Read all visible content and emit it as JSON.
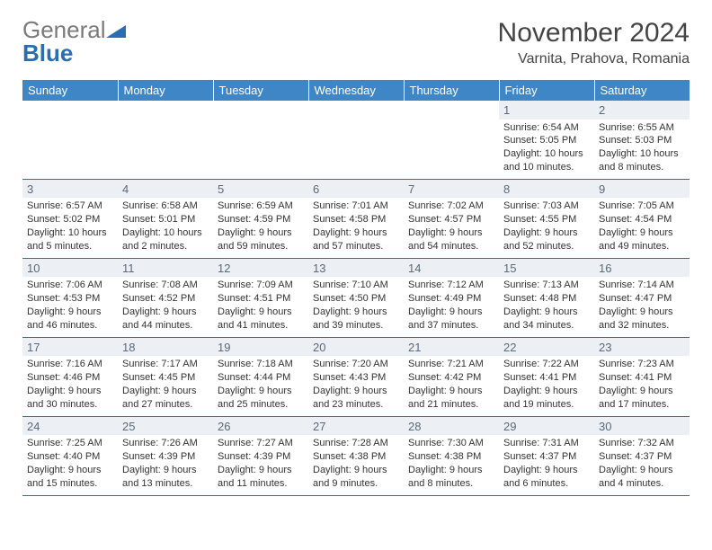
{
  "logo": {
    "gray": "General",
    "blue": "Blue"
  },
  "title": "November 2024",
  "location": "Varnita, Prahova, Romania",
  "colors": {
    "header_bg": "#3f86c7",
    "header_fg": "#ffffff",
    "row_divider": "#3a6da3",
    "daynum_bg": "#eceff3",
    "daynum_fg": "#5a6a78",
    "page_bg": "#ffffff"
  },
  "day_headers": [
    "Sunday",
    "Monday",
    "Tuesday",
    "Wednesday",
    "Thursday",
    "Friday",
    "Saturday"
  ],
  "weeks": [
    [
      {
        "n": "",
        "sunrise": "",
        "sunset": "",
        "daylight": ""
      },
      {
        "n": "",
        "sunrise": "",
        "sunset": "",
        "daylight": ""
      },
      {
        "n": "",
        "sunrise": "",
        "sunset": "",
        "daylight": ""
      },
      {
        "n": "",
        "sunrise": "",
        "sunset": "",
        "daylight": ""
      },
      {
        "n": "",
        "sunrise": "",
        "sunset": "",
        "daylight": ""
      },
      {
        "n": "1",
        "sunrise": "Sunrise: 6:54 AM",
        "sunset": "Sunset: 5:05 PM",
        "daylight": "Daylight: 10 hours and 10 minutes."
      },
      {
        "n": "2",
        "sunrise": "Sunrise: 6:55 AM",
        "sunset": "Sunset: 5:03 PM",
        "daylight": "Daylight: 10 hours and 8 minutes."
      }
    ],
    [
      {
        "n": "3",
        "sunrise": "Sunrise: 6:57 AM",
        "sunset": "Sunset: 5:02 PM",
        "daylight": "Daylight: 10 hours and 5 minutes."
      },
      {
        "n": "4",
        "sunrise": "Sunrise: 6:58 AM",
        "sunset": "Sunset: 5:01 PM",
        "daylight": "Daylight: 10 hours and 2 minutes."
      },
      {
        "n": "5",
        "sunrise": "Sunrise: 6:59 AM",
        "sunset": "Sunset: 4:59 PM",
        "daylight": "Daylight: 9 hours and 59 minutes."
      },
      {
        "n": "6",
        "sunrise": "Sunrise: 7:01 AM",
        "sunset": "Sunset: 4:58 PM",
        "daylight": "Daylight: 9 hours and 57 minutes."
      },
      {
        "n": "7",
        "sunrise": "Sunrise: 7:02 AM",
        "sunset": "Sunset: 4:57 PM",
        "daylight": "Daylight: 9 hours and 54 minutes."
      },
      {
        "n": "8",
        "sunrise": "Sunrise: 7:03 AM",
        "sunset": "Sunset: 4:55 PM",
        "daylight": "Daylight: 9 hours and 52 minutes."
      },
      {
        "n": "9",
        "sunrise": "Sunrise: 7:05 AM",
        "sunset": "Sunset: 4:54 PM",
        "daylight": "Daylight: 9 hours and 49 minutes."
      }
    ],
    [
      {
        "n": "10",
        "sunrise": "Sunrise: 7:06 AM",
        "sunset": "Sunset: 4:53 PM",
        "daylight": "Daylight: 9 hours and 46 minutes."
      },
      {
        "n": "11",
        "sunrise": "Sunrise: 7:08 AM",
        "sunset": "Sunset: 4:52 PM",
        "daylight": "Daylight: 9 hours and 44 minutes."
      },
      {
        "n": "12",
        "sunrise": "Sunrise: 7:09 AM",
        "sunset": "Sunset: 4:51 PM",
        "daylight": "Daylight: 9 hours and 41 minutes."
      },
      {
        "n": "13",
        "sunrise": "Sunrise: 7:10 AM",
        "sunset": "Sunset: 4:50 PM",
        "daylight": "Daylight: 9 hours and 39 minutes."
      },
      {
        "n": "14",
        "sunrise": "Sunrise: 7:12 AM",
        "sunset": "Sunset: 4:49 PM",
        "daylight": "Daylight: 9 hours and 37 minutes."
      },
      {
        "n": "15",
        "sunrise": "Sunrise: 7:13 AM",
        "sunset": "Sunset: 4:48 PM",
        "daylight": "Daylight: 9 hours and 34 minutes."
      },
      {
        "n": "16",
        "sunrise": "Sunrise: 7:14 AM",
        "sunset": "Sunset: 4:47 PM",
        "daylight": "Daylight: 9 hours and 32 minutes."
      }
    ],
    [
      {
        "n": "17",
        "sunrise": "Sunrise: 7:16 AM",
        "sunset": "Sunset: 4:46 PM",
        "daylight": "Daylight: 9 hours and 30 minutes."
      },
      {
        "n": "18",
        "sunrise": "Sunrise: 7:17 AM",
        "sunset": "Sunset: 4:45 PM",
        "daylight": "Daylight: 9 hours and 27 minutes."
      },
      {
        "n": "19",
        "sunrise": "Sunrise: 7:18 AM",
        "sunset": "Sunset: 4:44 PM",
        "daylight": "Daylight: 9 hours and 25 minutes."
      },
      {
        "n": "20",
        "sunrise": "Sunrise: 7:20 AM",
        "sunset": "Sunset: 4:43 PM",
        "daylight": "Daylight: 9 hours and 23 minutes."
      },
      {
        "n": "21",
        "sunrise": "Sunrise: 7:21 AM",
        "sunset": "Sunset: 4:42 PM",
        "daylight": "Daylight: 9 hours and 21 minutes."
      },
      {
        "n": "22",
        "sunrise": "Sunrise: 7:22 AM",
        "sunset": "Sunset: 4:41 PM",
        "daylight": "Daylight: 9 hours and 19 minutes."
      },
      {
        "n": "23",
        "sunrise": "Sunrise: 7:23 AM",
        "sunset": "Sunset: 4:41 PM",
        "daylight": "Daylight: 9 hours and 17 minutes."
      }
    ],
    [
      {
        "n": "24",
        "sunrise": "Sunrise: 7:25 AM",
        "sunset": "Sunset: 4:40 PM",
        "daylight": "Daylight: 9 hours and 15 minutes."
      },
      {
        "n": "25",
        "sunrise": "Sunrise: 7:26 AM",
        "sunset": "Sunset: 4:39 PM",
        "daylight": "Daylight: 9 hours and 13 minutes."
      },
      {
        "n": "26",
        "sunrise": "Sunrise: 7:27 AM",
        "sunset": "Sunset: 4:39 PM",
        "daylight": "Daylight: 9 hours and 11 minutes."
      },
      {
        "n": "27",
        "sunrise": "Sunrise: 7:28 AM",
        "sunset": "Sunset: 4:38 PM",
        "daylight": "Daylight: 9 hours and 9 minutes."
      },
      {
        "n": "28",
        "sunrise": "Sunrise: 7:30 AM",
        "sunset": "Sunset: 4:38 PM",
        "daylight": "Daylight: 9 hours and 8 minutes."
      },
      {
        "n": "29",
        "sunrise": "Sunrise: 7:31 AM",
        "sunset": "Sunset: 4:37 PM",
        "daylight": "Daylight: 9 hours and 6 minutes."
      },
      {
        "n": "30",
        "sunrise": "Sunrise: 7:32 AM",
        "sunset": "Sunset: 4:37 PM",
        "daylight": "Daylight: 9 hours and 4 minutes."
      }
    ]
  ]
}
